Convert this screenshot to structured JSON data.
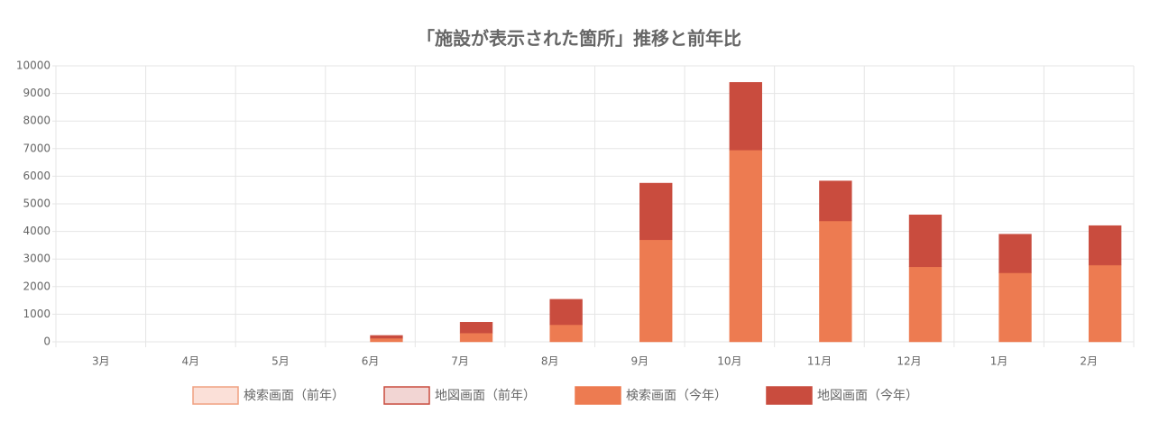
{
  "chart_data": {
    "type": "bar",
    "stacked": true,
    "title": "「施設が表示された箇所」推移と前年比",
    "categories": [
      "3月",
      "4月",
      "5月",
      "6月",
      "7月",
      "8月",
      "9月",
      "10月",
      "11月",
      "12月",
      "1月",
      "2月"
    ],
    "series": [
      {
        "name": "検索画面（前年）",
        "color": "#fbe0d8",
        "border": "#f0a080",
        "stack": "前年",
        "values": [
          0,
          0,
          0,
          0,
          0,
          0,
          0,
          0,
          0,
          0,
          0,
          0
        ]
      },
      {
        "name": "地図画面（前年）",
        "color": "#f2d5d3",
        "border": "#c94c3e",
        "stack": "前年",
        "values": [
          0,
          0,
          0,
          0,
          0,
          0,
          0,
          0,
          0,
          0,
          0,
          0
        ]
      },
      {
        "name": "検索画面（今年）",
        "color": "#ed7b51",
        "border": "#ed7b51",
        "stack": "今年",
        "values": [
          0,
          0,
          0,
          130,
          320,
          620,
          3700,
          6950,
          4380,
          2720,
          2500,
          2780
        ]
      },
      {
        "name": "地図画面（今年）",
        "color": "#c94c3e",
        "border": "#c94c3e",
        "stack": "今年",
        "values": [
          0,
          0,
          0,
          100,
          390,
          920,
          2050,
          2450,
          1450,
          1880,
          1400,
          1430
        ]
      }
    ],
    "ylim": [
      0,
      10000
    ],
    "yticks": [
      0,
      1000,
      2000,
      3000,
      4000,
      5000,
      6000,
      7000,
      8000,
      9000,
      10000
    ],
    "grid": true
  }
}
